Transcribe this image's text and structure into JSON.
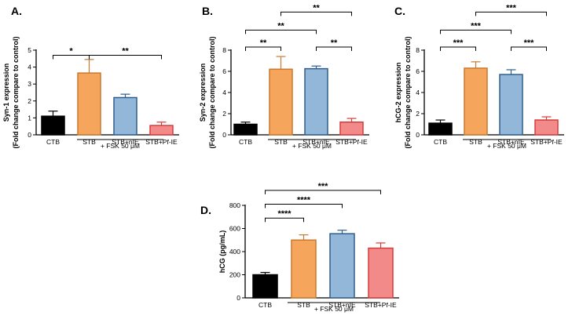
{
  "chart_data": [
    {
      "id": "A",
      "type": "bar",
      "panel_label": "A.",
      "categories": [
        "CTB",
        "STB",
        "STB+nIE",
        "STB+Pf-IE"
      ],
      "values": [
        1.1,
        3.65,
        2.2,
        0.55
      ],
      "errors": [
        0.3,
        0.8,
        0.2,
        0.2
      ],
      "colors": [
        "#000000",
        "#f5a55c",
        "#93b7d9",
        "#f28a8a"
      ],
      "edge_colors": [
        "#000000",
        "#c97a2e",
        "#2f5e8c",
        "#d63b3b"
      ],
      "ylabel_lines": [
        "Syn-1 expression",
        "(Fold change compare to control)"
      ],
      "ylim": [
        0,
        5
      ],
      "yticks": [
        0,
        1,
        2,
        3,
        4,
        5
      ],
      "yticklabels": [
        "0",
        "1",
        "2",
        "3",
        "4",
        "5"
      ],
      "treatment_label": "+ FSK 50 μM",
      "significance": [
        {
          "from": 0,
          "to": 1,
          "label": "*",
          "y": 4.7
        },
        {
          "from": 1,
          "to": 3,
          "label": "**",
          "y": 4.7
        }
      ]
    },
    {
      "id": "B",
      "type": "bar",
      "panel_label": "B.",
      "categories": [
        "CTB",
        "STB",
        "STB+nIE",
        "STB+Pf-IE"
      ],
      "values": [
        1.0,
        6.2,
        6.25,
        1.2
      ],
      "errors": [
        0.2,
        1.2,
        0.25,
        0.35
      ],
      "colors": [
        "#000000",
        "#f5a55c",
        "#93b7d9",
        "#f28a8a"
      ],
      "edge_colors": [
        "#000000",
        "#c97a2e",
        "#2f5e8c",
        "#d63b3b"
      ],
      "ylabel_lines": [
        "Syn-2 expression",
        "(Fold change compare to control)"
      ],
      "ylim": [
        0,
        8
      ],
      "yticks": [
        0,
        2,
        4,
        6,
        8
      ],
      "yticklabels": [
        "0",
        "2",
        "4",
        "6",
        "8"
      ],
      "treatment_label": "+ FSK 50 μM",
      "significance": [
        {
          "from": 0,
          "to": 1,
          "label": "**",
          "y": 8.3
        },
        {
          "from": 2,
          "to": 3,
          "label": "**",
          "y": 8.3
        },
        {
          "from": 0,
          "to": 2,
          "label": "**",
          "y": 9.9
        },
        {
          "from": 1,
          "to": 3,
          "label": "**",
          "y": 11.6
        }
      ]
    },
    {
      "id": "C",
      "type": "bar",
      "panel_label": "C.",
      "categories": [
        "CTB",
        "STB",
        "STB+nIE",
        "STB+Pf-IE"
      ],
      "values": [
        1.1,
        6.3,
        5.7,
        1.4
      ],
      "errors": [
        0.3,
        0.6,
        0.45,
        0.3
      ],
      "colors": [
        "#000000",
        "#f5a55c",
        "#93b7d9",
        "#f28a8a"
      ],
      "edge_colors": [
        "#000000",
        "#c97a2e",
        "#2f5e8c",
        "#d63b3b"
      ],
      "ylabel_lines": [
        "hCG-2 expression",
        "(Fold change compare to control)"
      ],
      "ylim": [
        0,
        8
      ],
      "yticks": [
        0,
        2,
        4,
        6,
        8
      ],
      "yticklabels": [
        "0",
        "2",
        "4",
        "6",
        "8"
      ],
      "treatment_label": "+ FSK 50 μM",
      "significance": [
        {
          "from": 0,
          "to": 1,
          "label": "***",
          "y": 8.3
        },
        {
          "from": 2,
          "to": 3,
          "label": "***",
          "y": 8.3
        },
        {
          "from": 0,
          "to": 2,
          "label": "***",
          "y": 9.9
        },
        {
          "from": 1,
          "to": 3,
          "label": "***",
          "y": 11.6
        }
      ]
    },
    {
      "id": "D",
      "type": "bar",
      "panel_label": "D.",
      "categories": [
        "CTB",
        "STB",
        "STB+nIE",
        "STB+Pf-IE"
      ],
      "values": [
        200,
        500,
        555,
        430
      ],
      "errors": [
        20,
        45,
        30,
        45
      ],
      "colors": [
        "#000000",
        "#f5a55c",
        "#93b7d9",
        "#f28a8a"
      ],
      "edge_colors": [
        "#000000",
        "#c97a2e",
        "#2f5e8c",
        "#d63b3b"
      ],
      "ylabel_lines": [
        "hCG (pg/mL)"
      ],
      "ylim": [
        0,
        800
      ],
      "yticks": [
        0,
        200,
        400,
        600,
        800
      ],
      "yticklabels": [
        "0",
        "200",
        "400",
        "600",
        "800"
      ],
      "treatment_label": "+ FSK 50 μM",
      "significance": [
        {
          "from": 0,
          "to": 1,
          "label": "****",
          "y": 690
        },
        {
          "from": 0,
          "to": 2,
          "label": "****",
          "y": 810
        },
        {
          "from": 0,
          "to": 3,
          "label": "***",
          "y": 930
        }
      ]
    }
  ]
}
